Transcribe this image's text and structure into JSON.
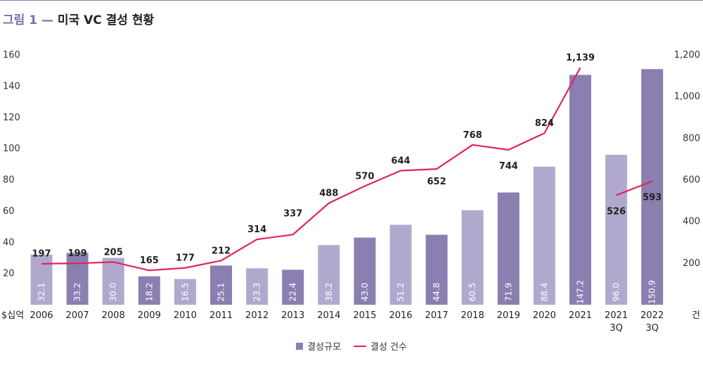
{
  "title": {
    "prefix": "그림 1 —",
    "main": "미국 VC 결성 현황"
  },
  "legend": {
    "bar_label": "결성규모",
    "line_label": "결성 건수"
  },
  "colors": {
    "bar_dark": "#8a7fb0",
    "bar_light": "#b1a9cd",
    "line": "#e0245e",
    "title_accent": "#7d6fa8"
  },
  "chart_data": {
    "type": "bar",
    "combo_secondary_type": "line",
    "categories": [
      "2006",
      "2007",
      "2008",
      "2009",
      "2010",
      "2011",
      "2012",
      "2013",
      "2014",
      "2015",
      "2016",
      "2017",
      "2018",
      "2019",
      "2020",
      "2021",
      "2021\n3Q",
      "2022\n3Q"
    ],
    "series": [
      {
        "name": "결성규모",
        "type": "bar",
        "axis": "left",
        "values": [
          32.1,
          33.2,
          30.0,
          18.2,
          16.5,
          25.1,
          23.3,
          22.4,
          38.2,
          43.0,
          51.2,
          44.8,
          60.5,
          71.9,
          88.4,
          147.2,
          96.0,
          150.9
        ],
        "value_labels": [
          "32.1",
          "33.2",
          "30.0",
          "18.2",
          "16.5",
          "25.1",
          "23.3",
          "22.4",
          "38.2",
          "43.0",
          "51.2",
          "44.8",
          "60.5",
          "71.9",
          "88.4",
          "147.2",
          "96.0",
          "150.9"
        ],
        "shade": [
          "light",
          "dark",
          "light",
          "dark",
          "light",
          "dark",
          "light",
          "dark",
          "light",
          "dark",
          "light",
          "dark",
          "light",
          "dark",
          "light",
          "dark",
          "light",
          "dark"
        ]
      },
      {
        "name": "결성 건수",
        "type": "line",
        "axis": "right",
        "values": [
          197,
          199,
          205,
          165,
          177,
          212,
          314,
          337,
          488,
          570,
          644,
          652,
          768,
          744,
          824,
          1139,
          526,
          593
        ],
        "value_labels": [
          "197",
          "199",
          "205",
          "165",
          "177",
          "212",
          "314",
          "337",
          "488",
          "570",
          "644",
          "652",
          "768",
          "744",
          "824",
          "1,139",
          "526",
          "593"
        ],
        "segments": [
          [
            0,
            15
          ],
          [
            16,
            17
          ]
        ]
      }
    ],
    "yaxis_left": {
      "unit": "$십억",
      "ylim": [
        0,
        160
      ],
      "ticks": [
        "20",
        "40",
        "60",
        "80",
        "100",
        "120",
        "140",
        "160"
      ]
    },
    "yaxis_right": {
      "unit": "건",
      "ylim": [
        0,
        1200
      ],
      "ticks": [
        "200",
        "400",
        "600",
        "800",
        "1,000",
        "1,200"
      ]
    },
    "grid": false,
    "legend_position": "bottom-center"
  }
}
